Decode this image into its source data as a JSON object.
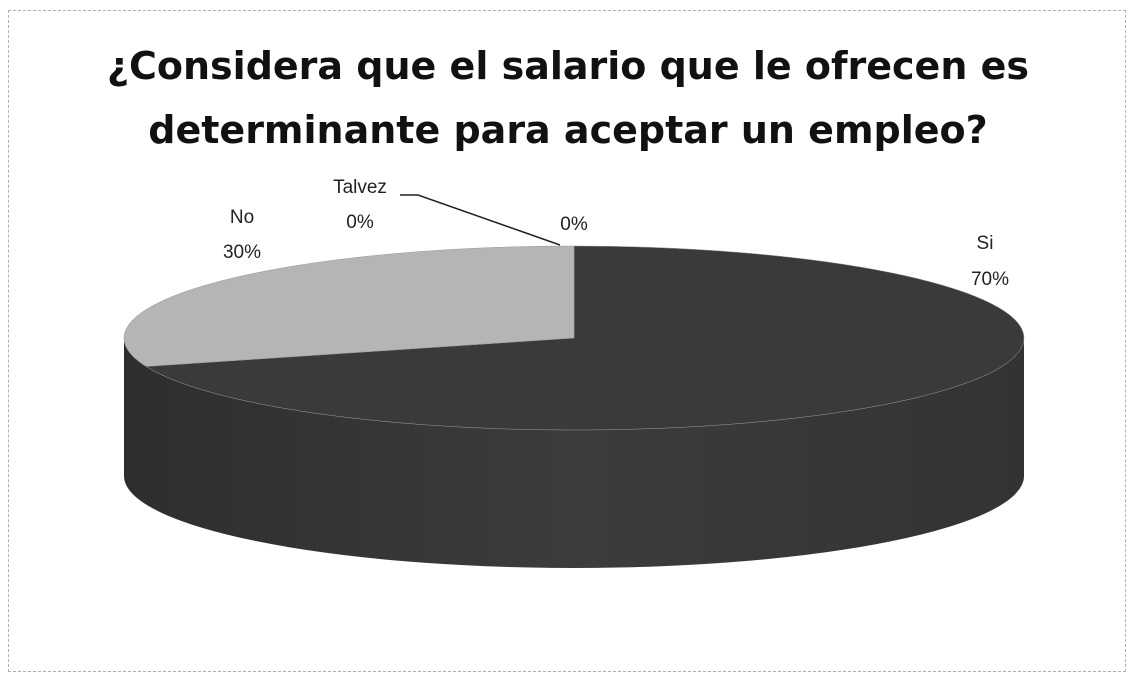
{
  "chart_data": {
    "type": "pie",
    "title_lines": [
      "¿Considera que el salario que le ofrecen es",
      "determinante para aceptar un empleo?"
    ],
    "three_d": true,
    "slices": [
      {
        "label": "Si",
        "percent_text": "70%",
        "value": 70,
        "color": "#3a3a3a"
      },
      {
        "label": "No",
        "percent_text": "30%",
        "value": 30,
        "color": "#b5b5b5"
      },
      {
        "label": "Talvez",
        "percent_text": "0%",
        "value": 0,
        "color": "#ffffff"
      },
      {
        "label": "",
        "percent_text": "0%",
        "value": 0,
        "color": "#ffffff"
      }
    ]
  }
}
